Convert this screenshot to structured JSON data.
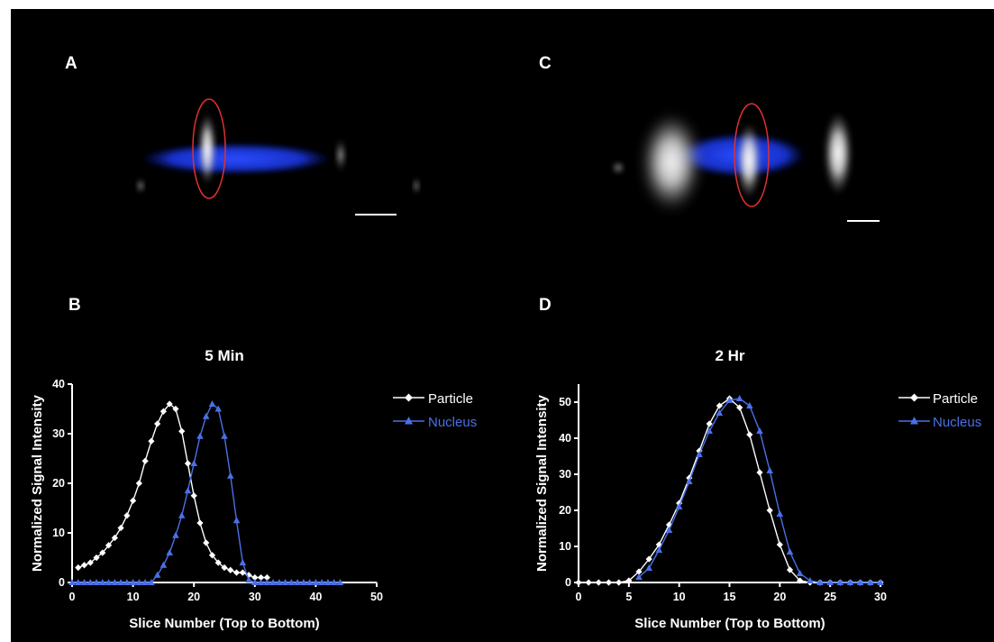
{
  "panels": {
    "a": {
      "label": "A"
    },
    "b": {
      "label": "B"
    },
    "c": {
      "label": "C"
    },
    "d": {
      "label": "D"
    }
  },
  "colors": {
    "background": "#000000",
    "particle": "#ffffff",
    "nucleus": "#4a70e8",
    "highlight_ellipse": "#e03030",
    "nucleus_image_blue": "#1c3cff"
  },
  "chart_data": [
    {
      "type": "line",
      "panel": "B",
      "title": "5 Min",
      "xlabel": "Slice Number (Top to Bottom)",
      "ylabel": "Normalized Signal Intensity",
      "xlim": [
        0,
        50
      ],
      "ylim": [
        0,
        40
      ],
      "xticks": [
        0,
        10,
        20,
        30,
        40,
        50
      ],
      "yticks": [
        0,
        10,
        20,
        30,
        40
      ],
      "grid": false,
      "legend_position": "top-right",
      "series": [
        {
          "name": "Particle",
          "marker": "diamond",
          "x": [
            1,
            2,
            3,
            4,
            5,
            6,
            7,
            8,
            9,
            10,
            11,
            12,
            13,
            14,
            15,
            16,
            17,
            18,
            19,
            20,
            21,
            22,
            23,
            24,
            25,
            26,
            27,
            28,
            29,
            30,
            31,
            32
          ],
          "y": [
            3,
            3.5,
            4,
            5,
            6,
            7.5,
            9,
            11,
            13.5,
            16.5,
            20,
            24.5,
            28.5,
            32,
            34.5,
            36,
            35,
            30.5,
            24,
            17.5,
            12,
            8,
            5.5,
            4,
            3,
            2.5,
            2,
            2,
            1.5,
            1,
            1,
            1
          ]
        },
        {
          "name": "Nucleus",
          "marker": "triangle",
          "x": [
            0,
            1,
            2,
            3,
            4,
            5,
            6,
            7,
            8,
            9,
            10,
            11,
            12,
            13,
            14,
            15,
            16,
            17,
            18,
            19,
            20,
            21,
            22,
            23,
            24,
            25,
            26,
            27,
            28,
            29,
            30,
            31,
            32,
            33,
            34,
            35,
            36,
            37,
            38,
            39,
            40,
            41,
            42,
            43,
            44
          ],
          "y": [
            0,
            0,
            0,
            0,
            0,
            0,
            0,
            0,
            0,
            0,
            0,
            0,
            0,
            0,
            1.5,
            3.5,
            6,
            9.5,
            13.5,
            18.5,
            24,
            29.5,
            33.5,
            36,
            35,
            29.5,
            21.5,
            12.5,
            4,
            0.5,
            0,
            0,
            0,
            0,
            0,
            0,
            0,
            0,
            0,
            0,
            0,
            0,
            0,
            0,
            0
          ]
        }
      ]
    },
    {
      "type": "line",
      "panel": "D",
      "title": "2 Hr",
      "xlabel": "Slice Number (Top to Bottom)",
      "ylabel": "Normalized Signal Intensity",
      "xlim": [
        0,
        30
      ],
      "ylim": [
        0,
        55
      ],
      "xticks": [
        0,
        5,
        10,
        15,
        20,
        25,
        30
      ],
      "yticks": [
        0,
        10,
        20,
        30,
        40,
        50
      ],
      "grid": false,
      "legend_position": "top-right",
      "series": [
        {
          "name": "Particle",
          "marker": "diamond",
          "x": [
            0,
            1,
            2,
            3,
            4,
            5,
            6,
            7,
            8,
            9,
            10,
            11,
            12,
            13,
            14,
            15,
            16,
            17,
            18,
            19,
            20,
            21,
            22,
            23,
            24,
            25,
            26,
            27,
            28,
            29,
            30
          ],
          "y": [
            0,
            0,
            0,
            0,
            0,
            0.5,
            3,
            6.5,
            10.5,
            16,
            22,
            29,
            36.5,
            44,
            49,
            51,
            48.5,
            41,
            30.5,
            20,
            10.5,
            3.5,
            0.5,
            0,
            0,
            0,
            0,
            0,
            0,
            0,
            0
          ]
        },
        {
          "name": "Nucleus",
          "marker": "triangle",
          "x": [
            6,
            7,
            8,
            9,
            10,
            11,
            12,
            13,
            14,
            15,
            16,
            17,
            18,
            19,
            20,
            21,
            22,
            23,
            24,
            25,
            26,
            27,
            28,
            29,
            30
          ],
          "y": [
            1.5,
            4,
            9,
            14.5,
            21,
            28,
            35.5,
            42,
            47,
            50.5,
            51,
            49,
            42,
            31,
            19,
            8.5,
            2.5,
            0.5,
            0,
            0,
            0,
            0,
            0,
            0,
            0
          ]
        }
      ]
    }
  ]
}
